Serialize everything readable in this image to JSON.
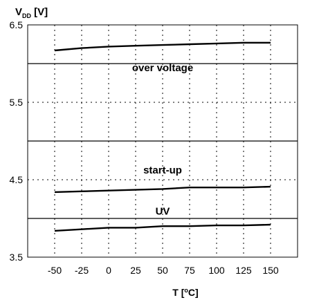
{
  "chart_data": {
    "type": "line",
    "ylabel": {
      "main": "V",
      "sub": "DD",
      "unit": " [V]"
    },
    "xlabel": {
      "main": "T [",
      "sup": "o",
      "unit": "C]"
    },
    "x": [
      -50,
      -25,
      0,
      25,
      50,
      75,
      100,
      125,
      150
    ],
    "x_ticks": [
      "-50",
      "-25",
      "0",
      "25",
      "50",
      "75",
      "100",
      "125",
      "150"
    ],
    "y_ticks": [
      "6.5",
      "5.5",
      "4.5",
      "3.5"
    ],
    "ylim": [
      3.5,
      6.5
    ],
    "xlim": [
      -75,
      175
    ],
    "grid": true,
    "reference_lines": [
      6.0,
      5.0,
      4.0
    ],
    "annotations": [
      {
        "text": "over voltage",
        "x": 50,
        "y": 5.9
      },
      {
        "text": "start-up",
        "x": 50,
        "y": 4.58
      },
      {
        "text": "UV",
        "x": 50,
        "y": 4.05
      }
    ],
    "series": [
      {
        "values": [
          6.17,
          6.2,
          6.22,
          6.23,
          6.24,
          6.25,
          6.26,
          6.27,
          6.27
        ]
      },
      {
        "values": [
          4.34,
          4.35,
          4.36,
          4.37,
          4.38,
          4.4,
          4.4,
          4.4,
          4.41
        ]
      },
      {
        "values": [
          3.84,
          3.86,
          3.88,
          3.88,
          3.9,
          3.9,
          3.91,
          3.91,
          3.92
        ]
      }
    ]
  }
}
